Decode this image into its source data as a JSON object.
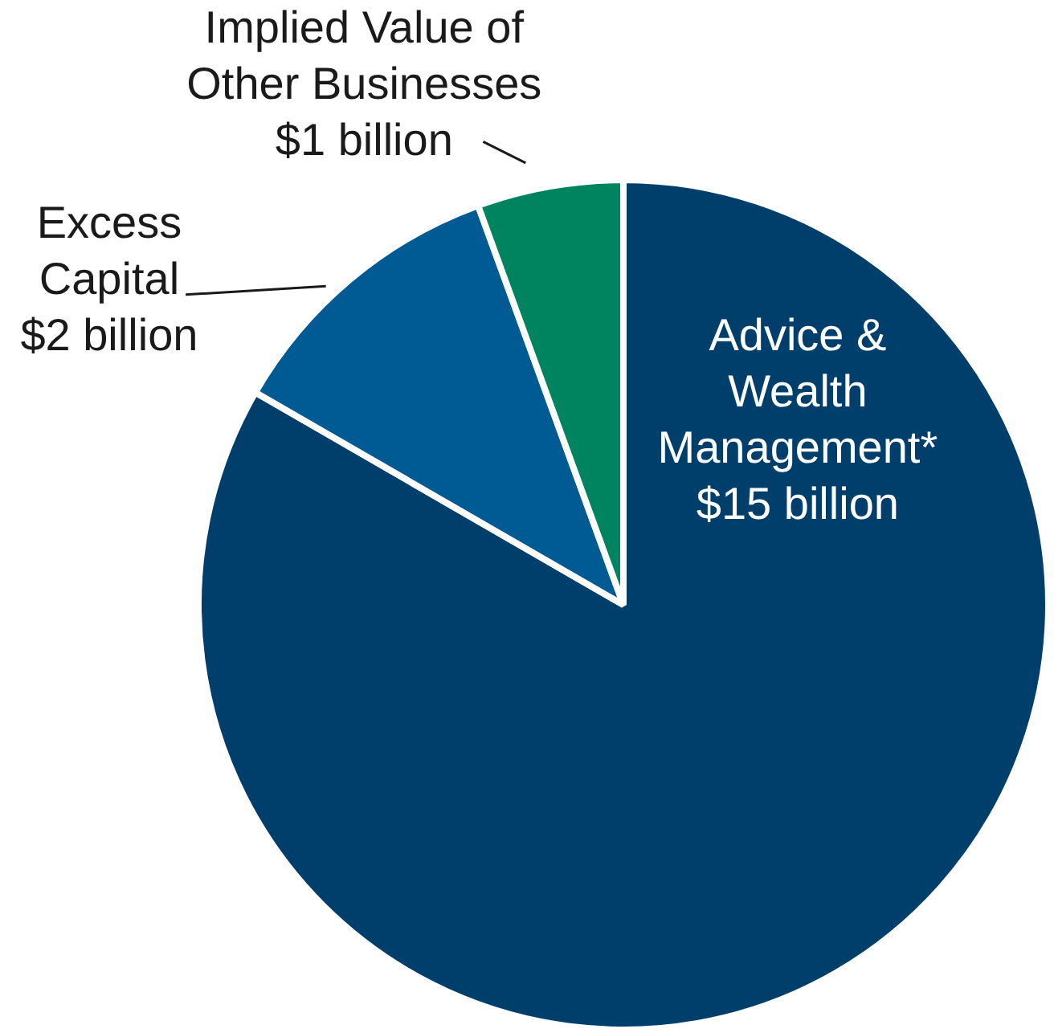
{
  "chart_data": {
    "type": "pie",
    "categories": [
      "Advice & Wealth Management*",
      "Excess Capital",
      "Implied Value of Other Businesses"
    ],
    "values": [
      15,
      2,
      1
    ],
    "value_labels": [
      "$15 billion",
      "$2 billion",
      "$1 billion"
    ],
    "colors": [
      "#003e6b",
      "#005b94",
      "#00845f"
    ],
    "legend": false
  }
}
